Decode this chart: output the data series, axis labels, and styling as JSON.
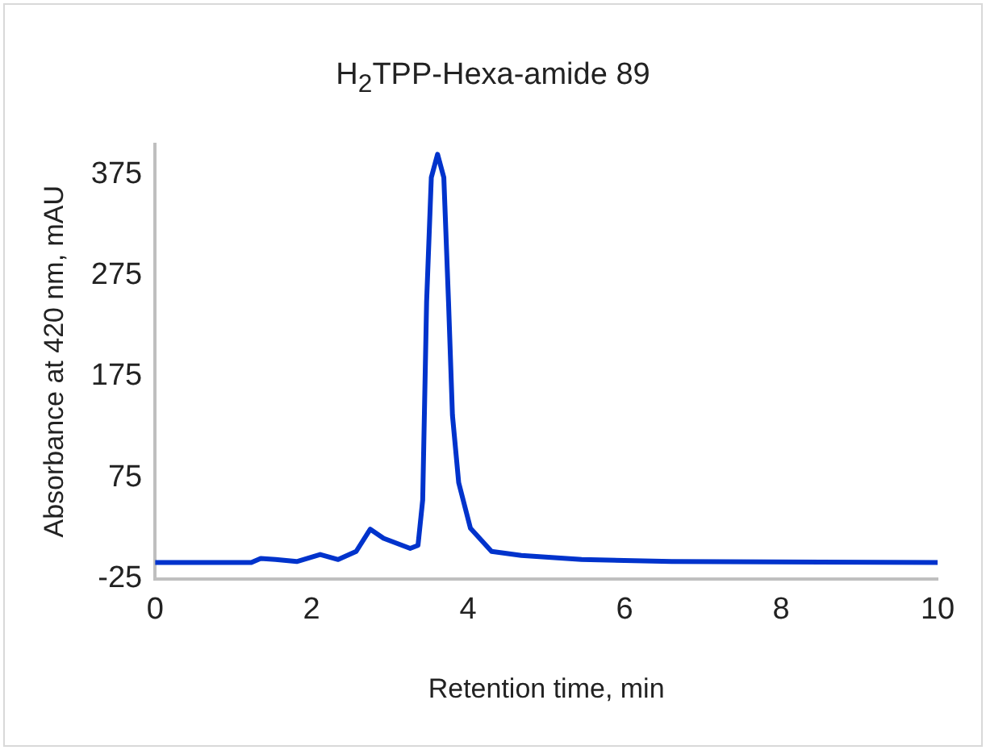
{
  "chart_data": {
    "type": "line",
    "title": "H$_{2}$TPP-Hexa-amide 89",
    "xlabel": "Retention time, min",
    "ylabel": "Absorbance at 420 nm, mAU",
    "series": [
      {
        "color": "#0033cc",
        "x": [
          0,
          1.23,
          1.35,
          1.54,
          1.81,
          2.11,
          2.34,
          2.57,
          2.75,
          2.92,
          3.26,
          3.36,
          3.42,
          3.47,
          3.53,
          3.61,
          3.69,
          3.75,
          3.8,
          3.88,
          4.03,
          4.3,
          4.68,
          5.45,
          6.6,
          10
        ],
        "values": [
          -9,
          -9,
          -5,
          -6,
          -8,
          -1,
          -6,
          2,
          24,
          15,
          5,
          8,
          53,
          249,
          372,
          395,
          372,
          249,
          137,
          70,
          25,
          2,
          -2,
          -6,
          -8,
          -9
        ]
      }
    ],
    "xlim": [
      0,
      10
    ],
    "xticks": [
      0,
      2,
      4,
      6,
      8,
      10
    ],
    "ylim": [
      -25,
      405
    ],
    "yticks": [
      -25,
      75,
      175,
      275,
      375
    ],
    "grid": false,
    "legend": false,
    "marker": "none",
    "line_style": "solid"
  }
}
